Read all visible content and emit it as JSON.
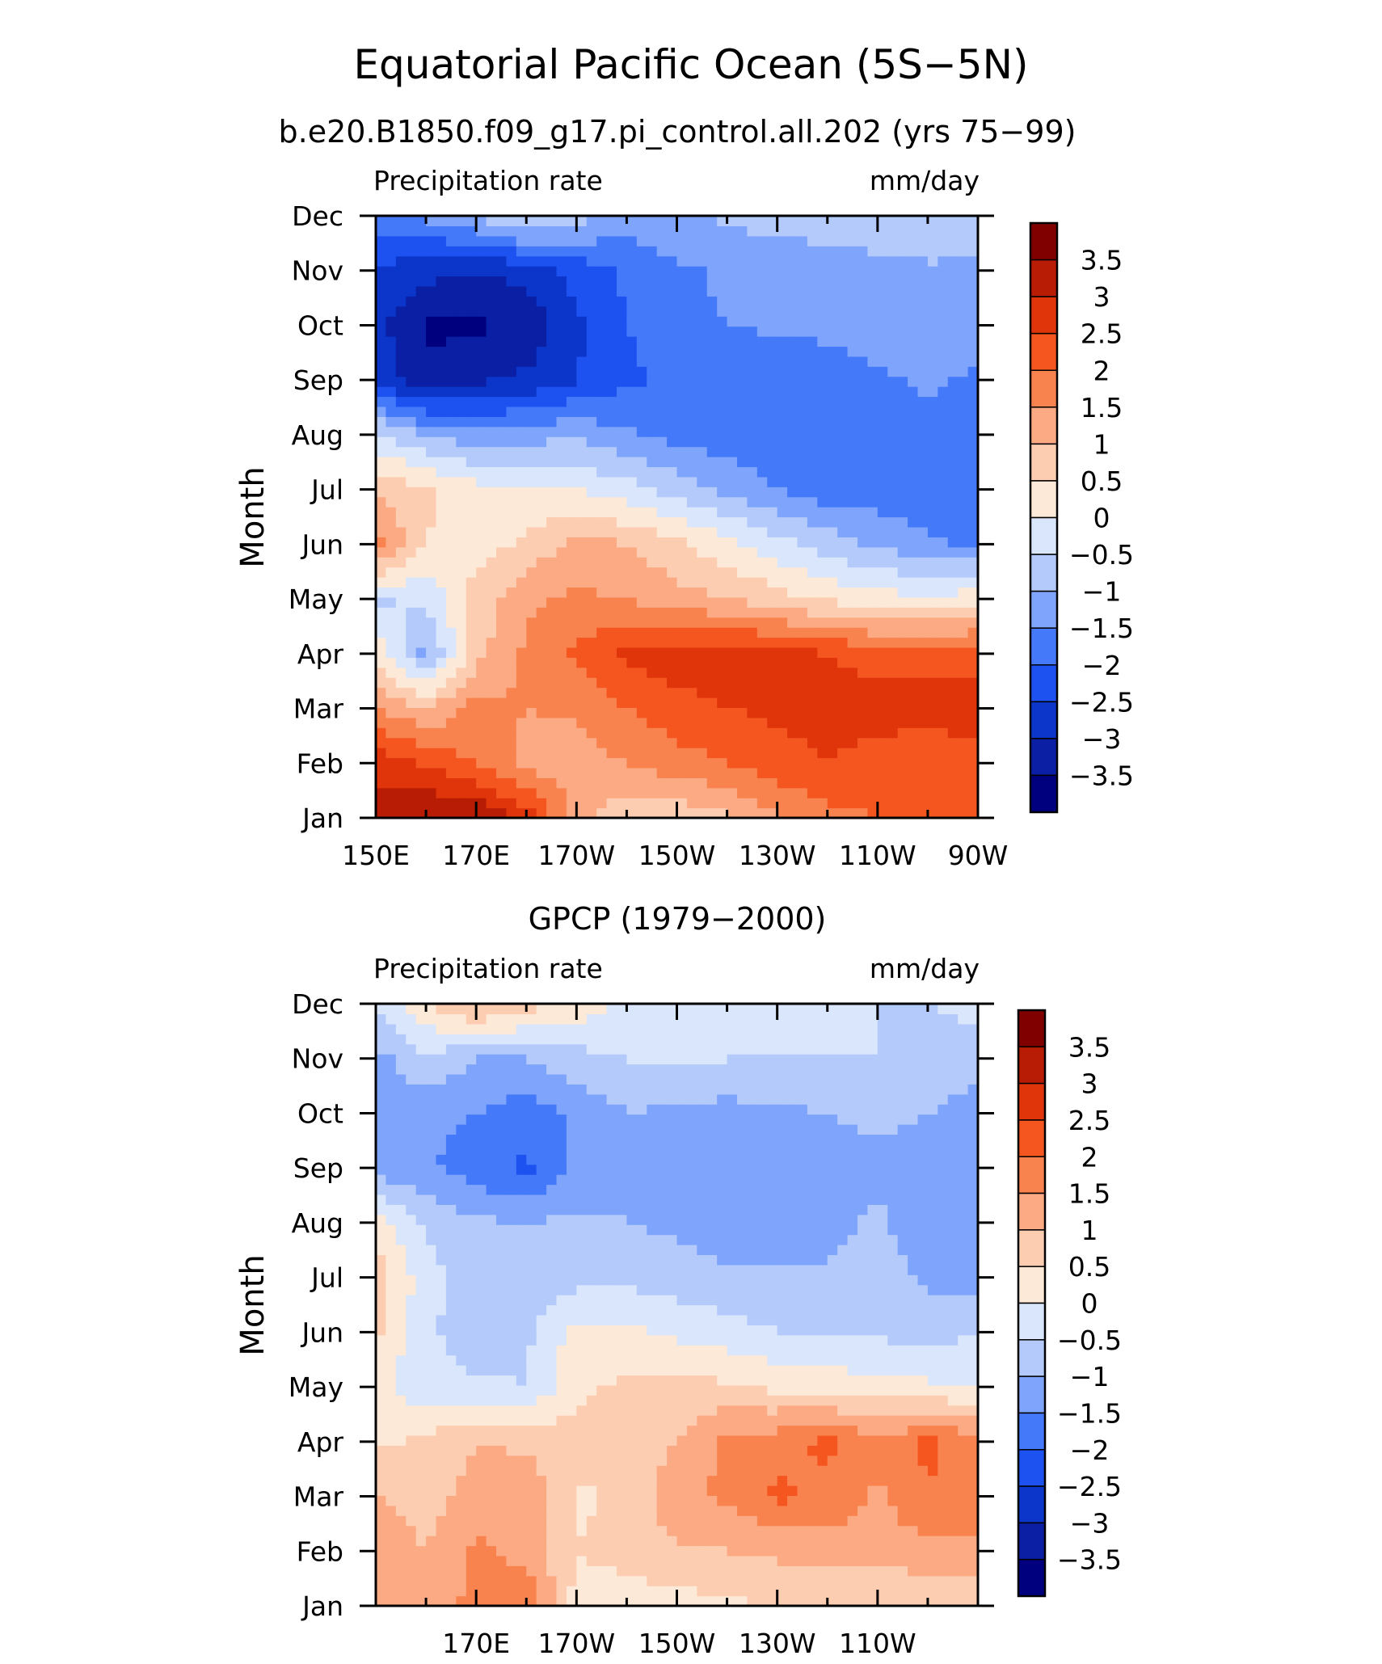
{
  "figure": {
    "title": "Equatorial Pacific Ocean (5S−5N)",
    "model_subtitle": "b.e20.B1850.f09_g17.pi_control.all.202 (yrs 75−99)",
    "obs_subtitle": "GPCP (1979−2000)"
  },
  "palette": {
    "levels": [
      "<−3.5",
      "−3.5",
      "−3",
      "−2.5",
      "−2",
      "−1.5",
      "−1",
      "−0.5",
      "0",
      "0.5",
      "1",
      "1.5",
      "2",
      "2.5",
      "3",
      "3.5"
    ],
    "colors": [
      "#00007f",
      "#0a1fa3",
      "#0b36c9",
      "#1d52f0",
      "#4479fa",
      "#7fa4fb",
      "#b4cafb",
      "#d9e6fb",
      "#fde9d8",
      "#fdcdb2",
      "#fbaa84",
      "#f9834f",
      "#f55620",
      "#e0340b",
      "#b81c05",
      "#800000"
    ]
  },
  "chart_data": [
    {
      "type": "heatmap",
      "name": "model",
      "left_title": "Precipitation rate",
      "right_title": "mm/day",
      "ylabel": "Month",
      "x_ticks": [
        "150E",
        "170E",
        "170W",
        "150W",
        "130W",
        "110W",
        "90W"
      ],
      "x_tick_lon": [
        150,
        170,
        190,
        210,
        230,
        250,
        270
      ],
      "y_ticks": [
        "Jan",
        "Feb",
        "Mar",
        "Apr",
        "May",
        "Jun",
        "Jul",
        "Aug",
        "Sep",
        "Oct",
        "Nov",
        "Dec"
      ],
      "xlim": [
        150,
        270
      ],
      "ylim": [
        1,
        12
      ],
      "colorbar_labels": [
        "3.5",
        "3",
        "2.5",
        "2",
        "1.5",
        "1",
        "0.5",
        "0",
        "−0.5",
        "−1",
        "−1.5",
        "−2",
        "−2.5",
        "−3",
        "−3.5"
      ],
      "lon": [
        150,
        160,
        170,
        180,
        190,
        200,
        210,
        220,
        230,
        240,
        250,
        260,
        270
      ],
      "month": [
        "Jan",
        "Feb",
        "Mar",
        "Apr",
        "May",
        "Jun",
        "Jul",
        "Aug",
        "Sep",
        "Oct",
        "Nov",
        "Dec"
      ],
      "values": [
        [
          3.2,
          3.6,
          3.6,
          2.8,
          1.3,
          0.6,
          0.6,
          0.9,
          1.4,
          1.8,
          2.0,
          2.0,
          2.0
        ],
        [
          2.8,
          2.4,
          2.0,
          1.3,
          1.2,
          1.5,
          1.8,
          2.0,
          2.3,
          2.5,
          2.3,
          2.0,
          2.3
        ],
        [
          1.5,
          1.0,
          1.7,
          1.5,
          1.6,
          2.0,
          2.3,
          2.5,
          2.6,
          2.7,
          2.7,
          2.8,
          2.8
        ],
        [
          0.4,
          -1.2,
          0.8,
          1.6,
          2.1,
          2.6,
          2.8,
          2.8,
          2.7,
          2.5,
          2.3,
          2.2,
          2.3
        ],
        [
          -0.6,
          -0.4,
          0.7,
          1.4,
          1.6,
          1.5,
          1.2,
          1.0,
          0.7,
          0.4,
          0.2,
          0.1,
          0.3
        ],
        [
          1.8,
          0.5,
          0.3,
          0.6,
          1.2,
          1.0,
          0.6,
          0.2,
          -0.3,
          -0.7,
          -1.1,
          -1.4,
          -1.6
        ],
        [
          0.9,
          0.6,
          0.2,
          0.1,
          0.0,
          -0.3,
          -0.7,
          -1.1,
          -1.5,
          -1.8,
          -1.8,
          -1.8,
          -1.9
        ],
        [
          -0.4,
          -1.0,
          -1.4,
          -1.2,
          -1.1,
          -1.4,
          -1.7,
          -1.8,
          -2.0,
          -2.0,
          -1.8,
          -1.7,
          -1.9
        ],
        [
          -2.6,
          -3.4,
          -3.1,
          -2.9,
          -2.5,
          -2.1,
          -1.9,
          -1.9,
          -2.0,
          -1.9,
          -1.6,
          -1.4,
          -1.6
        ],
        [
          -2.8,
          -3.6,
          -3.6,
          -3.4,
          -2.6,
          -2.0,
          -1.7,
          -1.5,
          -1.4,
          -1.3,
          -1.2,
          -1.2,
          -1.3
        ],
        [
          -2.6,
          -2.8,
          -3.0,
          -2.8,
          -2.3,
          -1.9,
          -1.6,
          -1.4,
          -1.3,
          -1.2,
          -1.2,
          -1.1,
          -1.1
        ],
        [
          -1.8,
          -1.4,
          -1.0,
          -0.3,
          -0.8,
          -1.2,
          -1.1,
          -0.9,
          -0.8,
          -0.8,
          -0.6,
          -0.5,
          -0.6
        ]
      ]
    },
    {
      "type": "heatmap",
      "name": "obs",
      "left_title": "Precipitation rate",
      "right_title": "mm/day",
      "ylabel": "Month",
      "x_ticks": [
        "170E",
        "170W",
        "150W",
        "130W",
        "110W"
      ],
      "x_tick_lon": [
        170,
        190,
        210,
        230,
        250
      ],
      "y_ticks": [
        "Jan",
        "Feb",
        "Mar",
        "Apr",
        "May",
        "Jun",
        "Jul",
        "Aug",
        "Sep",
        "Oct",
        "Nov",
        "Dec"
      ],
      "xlim": [
        150,
        270
      ],
      "ylim": [
        1,
        12
      ],
      "colorbar_labels": [
        "3.5",
        "3",
        "2.5",
        "2",
        "1.5",
        "1",
        "0.5",
        "0",
        "−0.5",
        "−1",
        "−1.5",
        "−2",
        "−2.5",
        "−3",
        "−3.5"
      ],
      "lon": [
        150,
        160,
        170,
        180,
        190,
        200,
        210,
        220,
        230,
        240,
        250,
        260,
        270
      ],
      "month": [
        "Jan",
        "Feb",
        "Mar",
        "Apr",
        "May",
        "Jun",
        "Jul",
        "Aug",
        "Sep",
        "Oct",
        "Nov",
        "Dec"
      ],
      "values": [
        [
          1.0,
          1.3,
          1.6,
          1.9,
          0.3,
          0.2,
          0.3,
          0.4,
          0.5,
          0.6,
          0.6,
          0.5,
          0.6
        ],
        [
          1.4,
          1.0,
          1.6,
          1.3,
          0.5,
          0.7,
          0.9,
          1.0,
          1.1,
          1.2,
          1.2,
          1.3,
          1.4
        ],
        [
          1.0,
          0.8,
          1.2,
          1.4,
          0.4,
          0.6,
          1.4,
          1.6,
          2.1,
          1.9,
          1.4,
          2.0,
          1.7
        ],
        [
          0.4,
          0.6,
          1.0,
          0.9,
          0.7,
          0.7,
          1.0,
          1.6,
          1.8,
          2.1,
          1.6,
          2.1,
          1.7
        ],
        [
          0.1,
          -0.3,
          -0.4,
          -0.5,
          0.4,
          0.6,
          0.7,
          0.6,
          0.4,
          0.3,
          0.2,
          0.1,
          0.0
        ],
        [
          0.6,
          -0.4,
          -0.8,
          -0.6,
          0.2,
          0.1,
          -0.1,
          -0.3,
          -0.5,
          -0.6,
          -0.6,
          -0.7,
          -0.5
        ],
        [
          0.8,
          -0.3,
          -0.8,
          -0.9,
          -0.7,
          -0.6,
          -0.8,
          -0.9,
          -0.9,
          -0.9,
          -0.8,
          -1.1,
          -1.3
        ],
        [
          0.3,
          -0.6,
          -0.9,
          -1.0,
          -0.9,
          -1.0,
          -1.1,
          -1.3,
          -1.3,
          -1.2,
          -0.9,
          -1.3,
          -1.2
        ],
        [
          -1.3,
          -1.4,
          -1.8,
          -2.1,
          -1.4,
          -1.1,
          -1.3,
          -1.4,
          -1.4,
          -1.3,
          -1.1,
          -1.2,
          -1.2
        ],
        [
          -1.1,
          -1.4,
          -1.5,
          -1.8,
          -1.4,
          -1.0,
          -1.1,
          -1.2,
          -1.1,
          -1.0,
          -0.9,
          -1.0,
          -1.3
        ],
        [
          -1.2,
          -0.6,
          -1.0,
          -1.0,
          -0.7,
          -0.5,
          -0.4,
          -0.5,
          -0.5,
          -0.5,
          -0.5,
          -0.6,
          -0.7
        ],
        [
          -0.4,
          0.4,
          1.2,
          0.7,
          0.4,
          -0.2,
          -0.3,
          -0.4,
          -0.4,
          -0.4,
          -0.5,
          -0.5,
          -0.4
        ]
      ]
    }
  ]
}
